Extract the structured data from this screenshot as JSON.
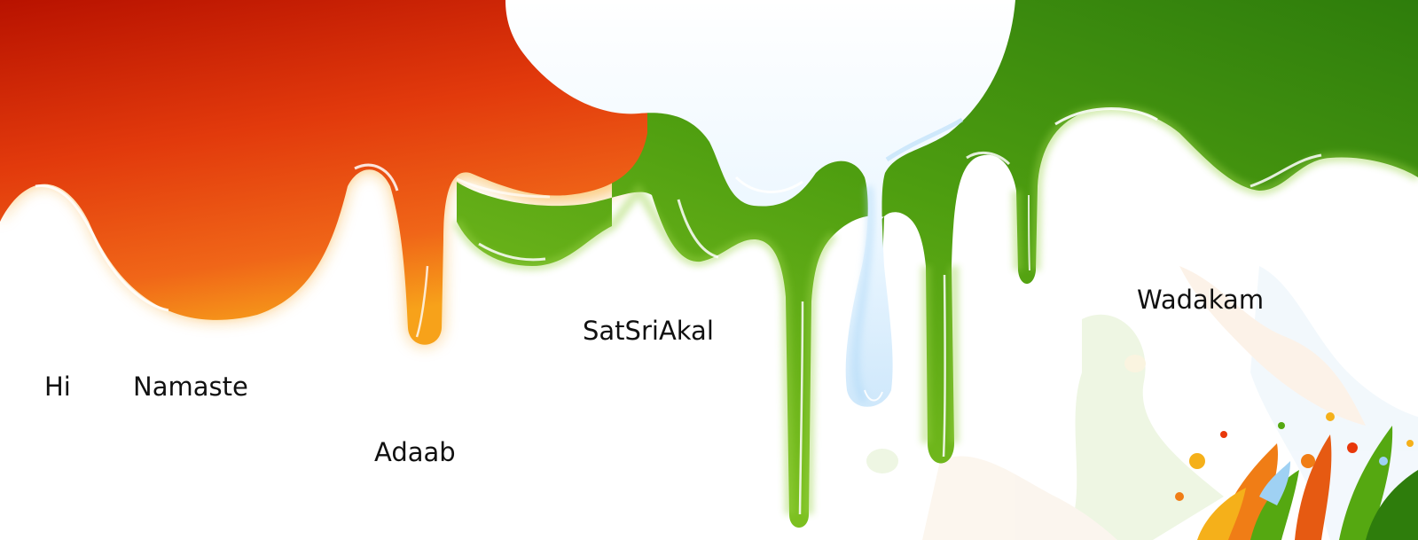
{
  "greetings": {
    "hi": "Hi",
    "namaste": "Namaste",
    "adaab": "Adaab",
    "satsriakal": "SatSriAkal",
    "wadakam": "Wadakam"
  },
  "colors": {
    "saffron_deep": "#b81200",
    "saffron": "#e8380a",
    "saffron_light": "#f7a21a",
    "white_paint": "#e6f4ff",
    "white_shadow": "#bfe0fa",
    "green_deep": "#2e7d0c",
    "green": "#55a811",
    "green_light": "#8ccb2a",
    "text": "#111111"
  }
}
